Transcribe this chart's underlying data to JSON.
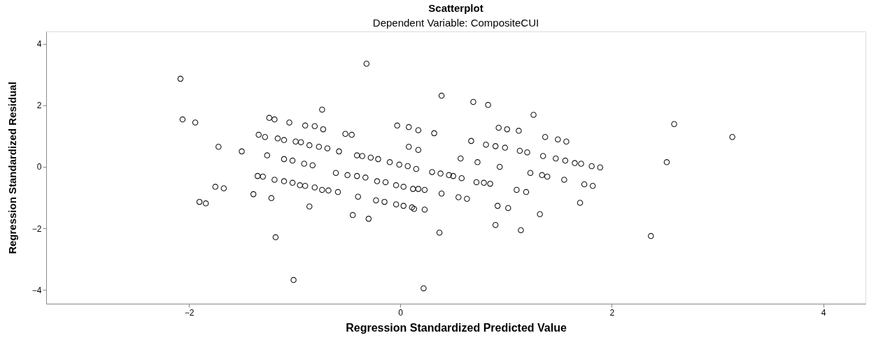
{
  "chart_data": {
    "type": "scatter",
    "title": "Scatterplot",
    "subtitle": "Dependent Variable: CompositeCUI",
    "xlabel": "Regression Standardized Predicted Value",
    "ylabel": "Regression Standardized Residual",
    "xlim": [
      -3.35,
      4.4
    ],
    "ylim": [
      -4.45,
      4.4
    ],
    "xticks": [
      -2,
      0,
      2,
      4
    ],
    "yticks": [
      -4,
      -2,
      0,
      2,
      4
    ],
    "grid": false,
    "marker": "circle",
    "series": [
      {
        "color": "#1a1a1a",
        "x": [
          -2.08,
          -2.06,
          -1.94,
          -1.72,
          -1.5,
          -1.28,
          -1.19,
          -1.05,
          -0.9,
          -0.81,
          -0.73,
          -0.32,
          0.39,
          0.69,
          0.83,
          1.26,
          2.59,
          3.14,
          2.52,
          2.37,
          -1.01,
          0.22,
          -1.18,
          0.37,
          0.9,
          1.14,
          -0.45,
          -0.3,
          -0.86,
          -1.39,
          -1.22,
          -1.9,
          -1.84,
          -1.75,
          -1.67,
          -1.35,
          -1.3,
          -1.19,
          -1.1,
          -1.02,
          -0.95,
          -0.9,
          -0.81,
          -0.74,
          -0.68,
          -0.59,
          -1.1,
          -1.02,
          -0.91,
          -0.83,
          -1.26,
          -1.16,
          -1.1,
          -0.99,
          -0.94,
          -0.86,
          -0.77,
          -0.69,
          -0.58,
          -0.52,
          -0.46,
          -0.41,
          -0.36,
          -0.28,
          -0.21,
          -0.1,
          -0.01,
          0.07,
          -0.03,
          0.08,
          0.08,
          -0.61,
          -0.5,
          -0.41,
          -0.33,
          -0.22,
          -0.14,
          -0.04,
          0.03,
          0.12,
          -0.4,
          -0.23,
          -0.15,
          -0.04,
          0.03,
          0.13,
          0.17,
          0.23,
          0.39,
          0.55,
          0.63,
          0.11,
          0.23,
          0.92,
          1.02,
          1.1,
          1.19,
          1.32,
          1.55,
          1.7,
          1.74,
          1.82,
          0.3,
          0.38,
          0.46,
          0.5,
          0.58,
          0.72,
          0.79,
          0.85,
          1.23,
          1.34,
          1.39,
          0.15,
          0.17,
          0.32,
          0.17,
          0.67,
          0.81,
          0.9,
          0.99,
          0.93,
          1.01,
          1.12,
          1.13,
          1.2,
          1.37,
          1.49,
          1.57,
          1.35,
          1.47,
          1.56,
          1.65,
          1.71,
          1.81,
          1.89,
          0.57,
          0.73,
          0.94,
          -0.74,
          -1.34,
          -1.24
        ],
        "values": [
          2.86,
          1.54,
          1.44,
          0.65,
          0.5,
          0.97,
          1.54,
          1.44,
          1.34,
          1.32,
          1.22,
          3.35,
          2.31,
          2.11,
          2.01,
          1.69,
          1.39,
          0.97,
          0.15,
          -2.25,
          -3.68,
          -3.95,
          -2.29,
          -2.14,
          -1.89,
          -2.06,
          -1.57,
          -1.69,
          -1.29,
          -0.89,
          -1.02,
          -1.14,
          -1.19,
          -0.65,
          -0.7,
          -0.3,
          -0.32,
          -0.42,
          -0.47,
          -0.52,
          -0.6,
          -0.62,
          -0.67,
          -0.75,
          -0.77,
          -0.82,
          0.25,
          0.2,
          0.1,
          0.05,
          0.37,
          0.92,
          0.87,
          0.82,
          0.8,
          0.7,
          0.65,
          0.6,
          0.5,
          1.07,
          1.04,
          0.37,
          0.35,
          0.3,
          0.25,
          0.15,
          0.07,
          0.02,
          1.34,
          1.29,
          0.65,
          -0.2,
          -0.27,
          -0.3,
          -0.35,
          -0.47,
          -0.5,
          -0.6,
          -0.65,
          -0.72,
          -0.97,
          -1.09,
          -1.14,
          -1.22,
          -1.27,
          -1.37,
          -0.72,
          -0.75,
          -0.87,
          -0.99,
          -1.04,
          -1.32,
          -1.39,
          -1.27,
          -1.34,
          -0.75,
          -0.82,
          -1.54,
          -0.42,
          -1.17,
          -0.57,
          -0.62,
          -0.17,
          -0.22,
          -0.27,
          -0.3,
          -0.37,
          -0.5,
          -0.52,
          -0.55,
          -0.2,
          -0.27,
          -0.32,
          -0.07,
          1.19,
          1.09,
          0.55,
          0.84,
          0.72,
          0.67,
          0.62,
          1.27,
          1.22,
          1.17,
          0.52,
          0.47,
          0.97,
          0.89,
          0.82,
          0.35,
          0.27,
          0.2,
          0.12,
          0.1,
          0.02,
          -0.02,
          0.27,
          0.15,
          0.0,
          1.86,
          1.04,
          1.59
        ]
      }
    ]
  }
}
